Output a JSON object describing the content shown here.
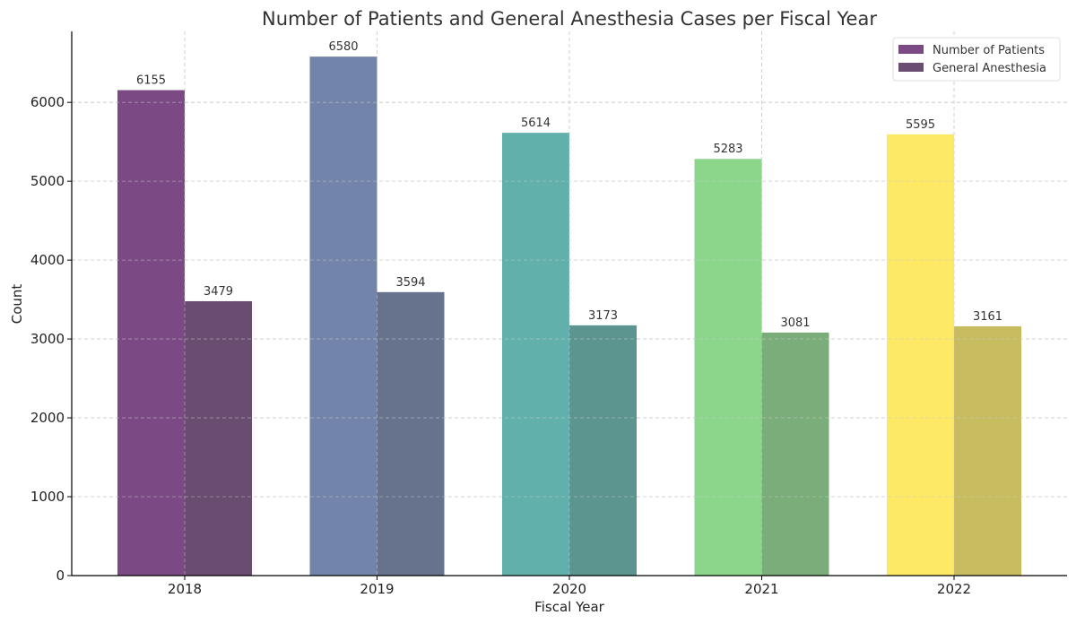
{
  "chart_data": {
    "type": "bar",
    "title": "Number of Patients and General Anesthesia Cases per Fiscal Year",
    "xlabel": "Fiscal Year",
    "ylabel": "Count",
    "categories": [
      "2018",
      "2019",
      "2020",
      "2021",
      "2022"
    ],
    "ylim": [
      0,
      6900
    ],
    "yticks": [
      0,
      1000,
      2000,
      3000,
      4000,
      5000,
      6000
    ],
    "grid": true,
    "legend_position": "top-right",
    "series": [
      {
        "name": "Number of Patients",
        "values": [
          6155,
          6580,
          5614,
          5283,
          5595
        ],
        "colors": [
          "#7b4a84",
          "#7384ab",
          "#61b0ab",
          "#8bd68b",
          "#fde966"
        ],
        "legend_color": "#7b4a84"
      },
      {
        "name": "General Anesthesia",
        "values": [
          3479,
          3594,
          3173,
          3081,
          3161
        ],
        "colors": [
          "#6b4c71",
          "#67728d",
          "#5c948f",
          "#7aad79",
          "#c8bc60"
        ],
        "legend_color": "#6b4c71"
      }
    ]
  }
}
